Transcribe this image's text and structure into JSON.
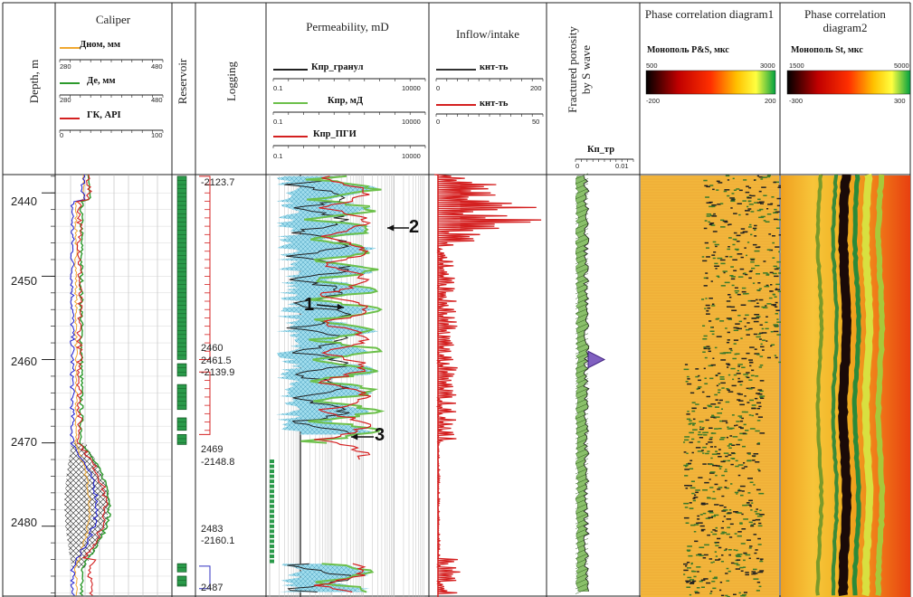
{
  "headers": {
    "depth": "Depth, m",
    "caliper": "Caliper",
    "reservoir": "Reservoir",
    "logging": "Logging",
    "permeability": "Permeability, mD",
    "inflow": "Inflow/intake",
    "fractured": "Fractured porosity by S wave",
    "phase1": "Phase correlation diagram1",
    "phase2": "Phase correlation diagram2"
  },
  "caliper_legend": {
    "items": [
      {
        "label": "Дном, мм",
        "color": "#f0a830",
        "scale": [
          "280",
          "480"
        ]
      },
      {
        "label": "Де, мм",
        "color": "#2c9a2c",
        "scale": [
          "280",
          "480"
        ]
      },
      {
        "label": "ГК, API",
        "color": "#d42020",
        "scale": [
          "0",
          "100"
        ]
      }
    ]
  },
  "perm_legend": {
    "items": [
      {
        "label": "Кпр_гранул",
        "color": "#222222",
        "scale": [
          "0.1",
          "10000"
        ]
      },
      {
        "label": "Кпр, мД",
        "color": "#6cc04a",
        "scale": [
          "0.1",
          "10000"
        ]
      },
      {
        "label": "Кпр_ПГИ",
        "color": "#d42020",
        "scale": [
          "0.1",
          "10000"
        ]
      }
    ]
  },
  "inflow_legend": {
    "items": [
      {
        "label": "кнт-ть",
        "color": "#333333",
        "scale": [
          "0",
          "200"
        ]
      },
      {
        "label": "кнт-ть",
        "color": "#d42020",
        "scale": [
          "0",
          "50"
        ]
      }
    ]
  },
  "fractured_legend": {
    "label": "Кп_тр",
    "scale": [
      "0",
      "0.01"
    ]
  },
  "phase1_legend": {
    "label": "Монополь P&S, мкс",
    "top": [
      "500",
      "3000"
    ],
    "bottom": [
      "-200",
      "200"
    ]
  },
  "phase2_legend": {
    "label": "Монополь St, мкс",
    "top": [
      "1500",
      "5000"
    ],
    "bottom": [
      "-300",
      "300"
    ]
  },
  "logging_labels": {
    "top": "-2123.7",
    "l1a": "2460",
    "l1b": "2461.5",
    "l1c": "-2139.9",
    "l2a": "2469",
    "l2b": "-2148.8",
    "l3a": "2483",
    "l3b": "-2160.1",
    "l4": "2487"
  },
  "annotations": {
    "a1": "1",
    "a2": "2",
    "a3": "3"
  },
  "chart_data": {
    "type": "line",
    "title": "",
    "y_axis": {
      "label": "Depth, m",
      "ticks": [
        2440,
        2450,
        2460,
        2470,
        2480
      ],
      "range": [
        2437.8,
        2488.5
      ],
      "inverted": true
    },
    "tracks": [
      {
        "name": "Caliper",
        "series": [
          "Дном, мм",
          "Де, мм",
          "ГК, API"
        ]
      },
      {
        "name": "Reservoir",
        "intervals": [
          [
            2438,
            2460
          ],
          [
            2460.5,
            2462
          ],
          [
            2463,
            2466
          ],
          [
            2467,
            2468.5
          ],
          [
            2469,
            2470.2
          ],
          [
            2484.5,
            2485.5
          ],
          [
            2486,
            2487.2
          ]
        ]
      },
      {
        "name": "Permeability, mD",
        "scale": "log",
        "range": [
          0.1,
          10000
        ],
        "series": [
          "Кпр_гранул",
          "Кпр, мД",
          "Кпр_ПГИ"
        ]
      },
      {
        "name": "Inflow/intake",
        "series": [
          "кнт-ть",
          "кнт-ть"
        ]
      },
      {
        "name": "Fractured porosity by S wave",
        "range": [
          0,
          0.01
        ]
      },
      {
        "name": "Phase correlation diagram1"
      },
      {
        "name": "Phase correlation diagram2"
      }
    ]
  }
}
